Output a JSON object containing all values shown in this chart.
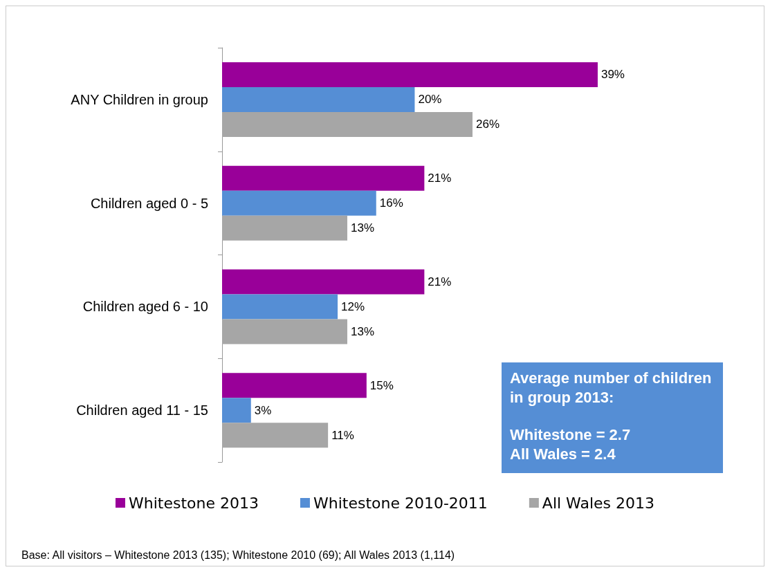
{
  "chart_data": {
    "type": "bar",
    "orientation": "horizontal",
    "categories": [
      "ANY Children in group",
      "Children aged 0 - 5",
      "Children aged 6 - 10",
      "Children aged 11 - 15"
    ],
    "series": [
      {
        "name": "Whitestone 2013",
        "color": "#990099",
        "values": [
          39,
          21,
          21,
          15
        ],
        "value_labels": [
          "39%",
          "21%",
          "21%",
          "15%"
        ]
      },
      {
        "name": "Whitestone 2010-2011",
        "color": "#558ed5",
        "values": [
          20,
          16,
          12,
          3
        ],
        "value_labels": [
          "20%",
          "16%",
          "12%",
          "3%"
        ]
      },
      {
        "name": "All Wales 2013",
        "color": "#a6a6a6",
        "values": [
          26,
          13,
          13,
          11
        ],
        "value_labels": [
          "26%",
          "13%",
          "13%",
          "11%"
        ]
      }
    ],
    "legend": "bottom",
    "annotations": [
      "Average number of children in group 2013:",
      "Whitestone = 2.7\nAll Wales = 2.4",
      "Base: All visitors – Whitestone 2013 (135); Whitestone 2010 (69); All Wales 2013 (1,114)"
    ]
  }
}
